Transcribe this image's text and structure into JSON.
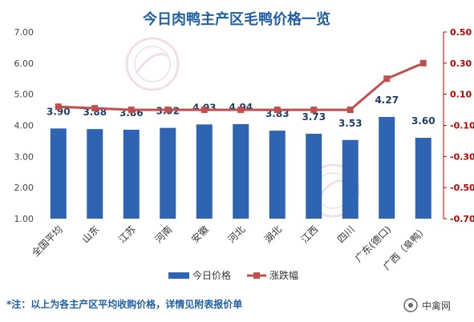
{
  "chart_data": {
    "type": "bar",
    "title": "今日肉鸭主产区毛鸭价格一览",
    "categories": [
      "全国平均",
      "山东",
      "江苏",
      "河南",
      "安徽",
      "河北",
      "湖北",
      "江西",
      "四川",
      "广东(德口)",
      "广西（阜鸭）"
    ],
    "series": [
      {
        "name": "今日价格",
        "type": "bar",
        "axis": "left",
        "color": "#2e64b1",
        "values": [
          3.9,
          3.88,
          3.86,
          3.92,
          4.03,
          4.04,
          3.83,
          3.73,
          3.53,
          4.27,
          3.6
        ]
      },
      {
        "name": "涨跌幅",
        "type": "line",
        "axis": "right",
        "color": "#c0504d",
        "values": [
          0.02,
          0.01,
          0.0,
          0.0,
          0.0,
          0.0,
          0.0,
          0.0,
          0.0,
          0.2,
          0.3
        ]
      }
    ],
    "data_labels": [
      "3.90",
      "3.88",
      "3.86",
      "3.92",
      "4.03",
      "4.04",
      "3.83",
      "3.73",
      "3.53",
      "4.27",
      "3.60"
    ],
    "y_left": {
      "min": 1.0,
      "max": 7.0,
      "ticks": [
        "7.00",
        "6.00",
        "5.00",
        "4.00",
        "3.00",
        "2.00",
        "1.00"
      ]
    },
    "y_right": {
      "min": -0.7,
      "max": 0.5,
      "ticks": [
        "0.50",
        "0.30",
        "0.10",
        "-0.10",
        "-0.30",
        "-0.50",
        "-0.70"
      ]
    },
    "legend_position": "bottom",
    "grid": false
  },
  "footnote": "*注：以上为各主产区平均收购价格，详情见附表报价单",
  "brand": "中禽网",
  "watermark": "中禽网"
}
